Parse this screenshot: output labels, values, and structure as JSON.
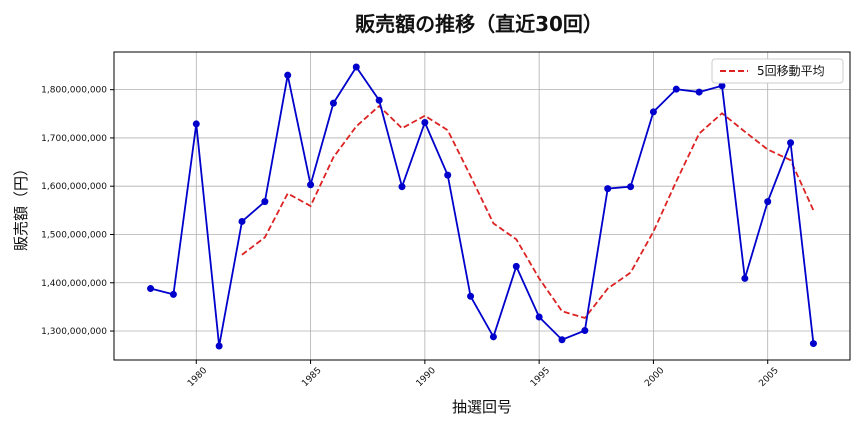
{
  "chart_data": {
    "type": "line",
    "title": "販売額の推移（直近30回）",
    "xlabel": "抽選回号",
    "ylabel": "販売額（円）",
    "xlim": [
      1976.4,
      2008.6
    ],
    "ylim": [
      1240000000,
      1878000000
    ],
    "x_ticks": [
      1980,
      1985,
      1990,
      1995,
      2000,
      2005
    ],
    "x_tick_labels": [
      "1980",
      "1985",
      "1990",
      "1995",
      "2000",
      "2005"
    ],
    "y_ticks": [
      1300000000,
      1400000000,
      1500000000,
      1600000000,
      1700000000,
      1800000000
    ],
    "y_tick_labels": [
      "1,300,000,000",
      "1,400,000,000",
      "1,500,000,000",
      "1,600,000,000",
      "1,700,000,000",
      "1,800,000,000"
    ],
    "grid": true,
    "legend_position": "top-right",
    "x": [
      1978,
      1979,
      1980,
      1981,
      1982,
      1983,
      1984,
      1985,
      1986,
      1987,
      1988,
      1989,
      1990,
      1991,
      1992,
      1993,
      1994,
      1995,
      1996,
      1997,
      1998,
      1999,
      2000,
      2001,
      2002,
      2003,
      2004,
      2005,
      2006,
      2007
    ],
    "series": [
      {
        "color": "#0000cc",
        "style": "solid",
        "marker": "circle",
        "values": [
          1388000000,
          1376000000,
          1729000000,
          1269000000,
          1527000000,
          1568000000,
          1830000000,
          1603000000,
          1772000000,
          1847000000,
          1778000000,
          1599000000,
          1732000000,
          1623000000,
          1372000000,
          1288000000,
          1434000000,
          1329000000,
          1282000000,
          1301000000,
          1595000000,
          1599000000,
          1754000000,
          1801000000,
          1795000000,
          1808000000,
          1409000000,
          1568000000,
          1690000000,
          1274000000
        ]
      },
      {
        "name": "5回移動平均",
        "color": "#dd2222",
        "style": "dashed",
        "marker": "none",
        "values": [
          null,
          null,
          null,
          null,
          1458000000,
          1494000000,
          1585000000,
          1559000000,
          1660000000,
          1724000000,
          1766000000,
          1720000000,
          1746000000,
          1716000000,
          1621000000,
          1523000000,
          1490000000,
          1409000000,
          1341000000,
          1327000000,
          1388000000,
          1421000000,
          1506000000,
          1610000000,
          1709000000,
          1751000000,
          1713000000,
          1676000000,
          1654000000,
          1550000000
        ]
      }
    ]
  }
}
